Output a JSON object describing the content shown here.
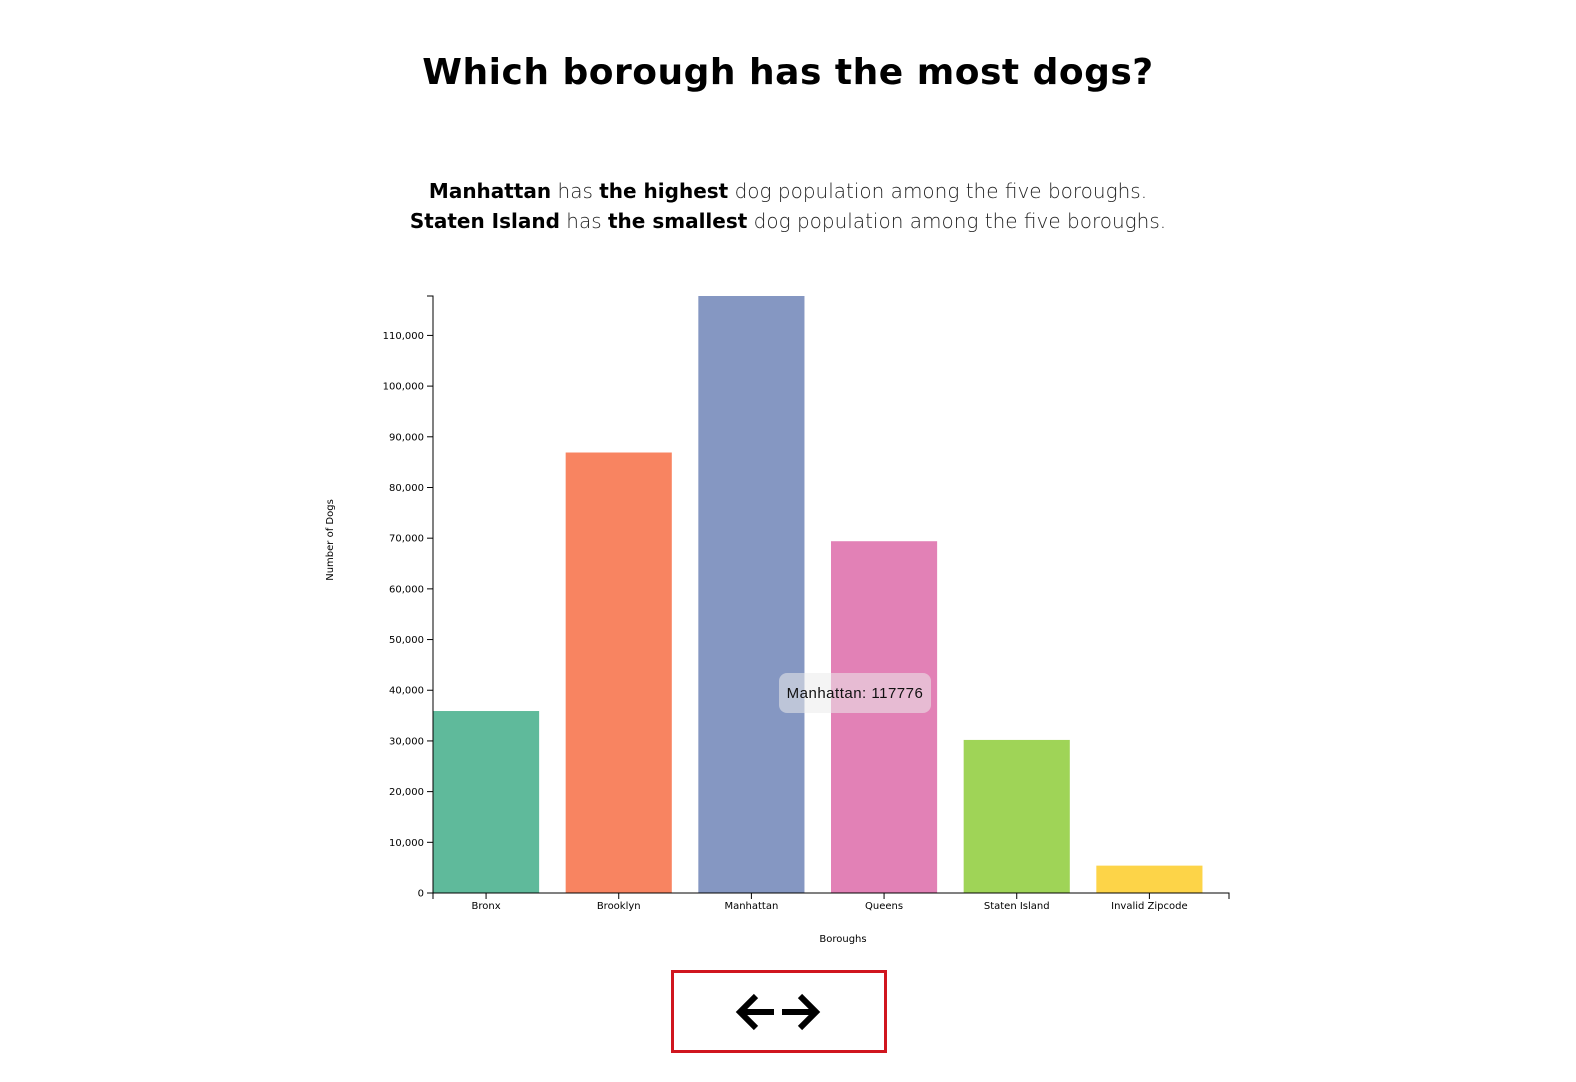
{
  "page": {
    "title": "Which borough has the most dogs?",
    "summary": {
      "line1": {
        "borough": "Manhattan",
        "mid": " has ",
        "qualifier": "the highest",
        "rest": " dog population among the five boroughs."
      },
      "line2": {
        "borough": "Staten Island",
        "mid": " has ",
        "qualifier": "the smallest",
        "rest": " dog population among the five boroughs."
      }
    }
  },
  "tooltip": {
    "text": "Manhattan: 117776"
  },
  "navigation": {
    "icon_left": "arrow-left-icon",
    "icon_right": "arrow-right-icon",
    "border_color": "#d0161f"
  },
  "chart_data": {
    "type": "bar",
    "title": "",
    "xlabel": "Boroughs",
    "ylabel": "Number of Dogs",
    "categories": [
      "Bronx",
      "Brooklyn",
      "Manhattan",
      "Queens",
      "Staten Island",
      "Invalid Zipcode"
    ],
    "values": [
      35900,
      86900,
      117776,
      69400,
      30200,
      5400
    ],
    "colors": [
      "#5fba9b",
      "#f88461",
      "#8597c2",
      "#e281b6",
      "#9fd457",
      "#fdd448"
    ],
    "ylim": [
      0,
      117776
    ],
    "yticks": [
      0,
      10000,
      20000,
      30000,
      40000,
      50000,
      60000,
      70000,
      80000,
      90000,
      100000,
      110000
    ],
    "grid": false,
    "legend": "none"
  }
}
